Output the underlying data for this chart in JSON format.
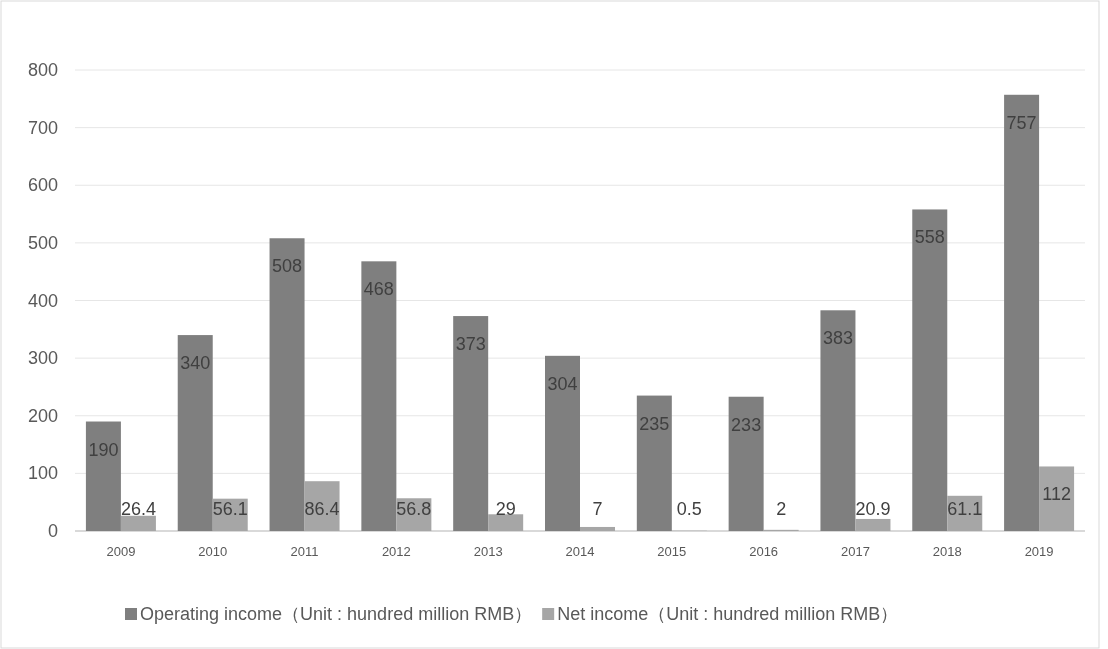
{
  "chart_data": {
    "type": "bar",
    "categories": [
      "2009",
      "2010",
      "2011",
      "2012",
      "2013",
      "2014",
      "2015",
      "2016",
      "2017",
      "2018",
      "2019"
    ],
    "series": [
      {
        "name": "Operating income（Unit : hundred million RMB）",
        "color": "#7f7f7f",
        "values": [
          190,
          340,
          508,
          468,
          373,
          304,
          235,
          233,
          383,
          558,
          757
        ]
      },
      {
        "name": "Net income（Unit : hundred million RMB）",
        "color": "#a6a6a6",
        "values": [
          26.4,
          56.1,
          86.4,
          56.8,
          29,
          7,
          0.5,
          2,
          20.9,
          61.1,
          112
        ]
      }
    ],
    "ylim": [
      0,
      800
    ],
    "yticks": [
      0,
      100,
      200,
      300,
      400,
      500,
      600,
      700,
      800
    ],
    "grid": "y",
    "legend": "bottom",
    "data_labels": true
  }
}
